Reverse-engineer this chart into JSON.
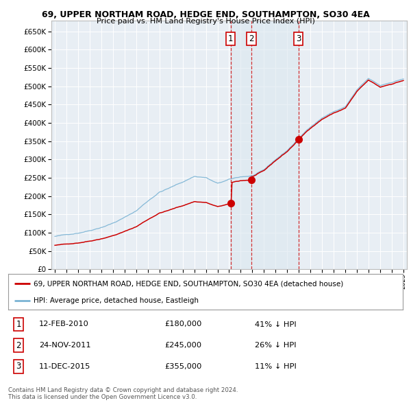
{
  "title1": "69, UPPER NORTHAM ROAD, HEDGE END, SOUTHAMPTON, SO30 4EA",
  "title2": "Price paid vs. HM Land Registry's House Price Index (HPI)",
  "background_color": "#ffffff",
  "plot_bg_color": "#e8eef4",
  "grid_color": "#ffffff",
  "hpi_color": "#7ab3d4",
  "price_color": "#cc0000",
  "vline_color": "#cc0000",
  "shade_color": "#dce8f0",
  "legend_entries": [
    "69, UPPER NORTHAM ROAD, HEDGE END, SOUTHAMPTON, SO30 4EA (detached house)",
    "HPI: Average price, detached house, Eastleigh"
  ],
  "table_rows": [
    {
      "num": "1",
      "date": "12-FEB-2010",
      "price": "£180,000",
      "hpi": "41% ↓ HPI"
    },
    {
      "num": "2",
      "date": "24-NOV-2011",
      "price": "£245,000",
      "hpi": "26% ↓ HPI"
    },
    {
      "num": "3",
      "date": "11-DEC-2015",
      "price": "£355,000",
      "hpi": "11% ↓ HPI"
    }
  ],
  "footer": "Contains HM Land Registry data © Crown copyright and database right 2024.\nThis data is licensed under the Open Government Licence v3.0.",
  "ylim": [
    0,
    680000
  ],
  "yticks": [
    0,
    50000,
    100000,
    150000,
    200000,
    250000,
    300000,
    350000,
    400000,
    450000,
    500000,
    550000,
    600000,
    650000
  ],
  "xlim_start": 1994.7,
  "xlim_end": 2025.3,
  "trans_dates": [
    2010.12,
    2011.92,
    2015.96
  ],
  "trans_prices": [
    180000,
    245000,
    355000
  ],
  "trans_labels": [
    "1",
    "2",
    "3"
  ]
}
